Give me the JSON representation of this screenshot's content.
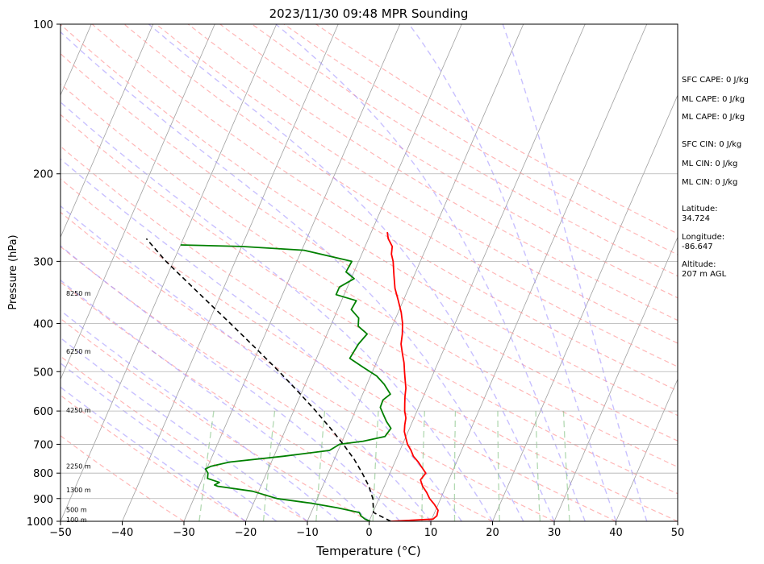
{
  "chart_data": {
    "type": "line",
    "title": "2023/11/30 09:48 MPR Sounding",
    "xlabel": "Temperature (°C)",
    "ylabel": "Pressure (hPa)",
    "xlim": [
      -50,
      50
    ],
    "ylim": [
      1000,
      100
    ],
    "y_scale": "log",
    "x_ticks": [
      "−50",
      "−40",
      "−30",
      "−20",
      "−10",
      "0",
      "10",
      "20",
      "30",
      "40",
      "50"
    ],
    "x_tick_values": [
      -50,
      -40,
      -30,
      -20,
      -10,
      0,
      10,
      20,
      30,
      40,
      50
    ],
    "y_ticks": [
      "100",
      "200",
      "300",
      "400",
      "500",
      "600",
      "700",
      "800",
      "900",
      "1000"
    ],
    "y_tick_values": [
      100,
      200,
      300,
      400,
      500,
      600,
      700,
      800,
      900,
      1000
    ],
    "grid": true,
    "series": [
      {
        "color": "#ff0000",
        "points": [
          [
            1000,
            3.5
          ],
          [
            990,
            10.2
          ],
          [
            975,
            10.6
          ],
          [
            950,
            10.4
          ],
          [
            925,
            9.4
          ],
          [
            900,
            8.2
          ],
          [
            875,
            7.3
          ],
          [
            850,
            6.2
          ],
          [
            825,
            5.4
          ],
          [
            800,
            5.8
          ],
          [
            780,
            4.8
          ],
          [
            760,
            3.8
          ],
          [
            740,
            2.6
          ],
          [
            720,
            1.8
          ],
          [
            700,
            0.8
          ],
          [
            680,
            0.1
          ],
          [
            660,
            -0.6
          ],
          [
            640,
            -1.0
          ],
          [
            620,
            -1.3
          ],
          [
            600,
            -2.0
          ],
          [
            580,
            -2.5
          ],
          [
            560,
            -3.0
          ],
          [
            540,
            -3.4
          ],
          [
            520,
            -4.1
          ],
          [
            500,
            -4.8
          ],
          [
            480,
            -5.5
          ],
          [
            460,
            -6.4
          ],
          [
            440,
            -7.3
          ],
          [
            420,
            -7.8
          ],
          [
            400,
            -8.5
          ],
          [
            380,
            -9.5
          ],
          [
            360,
            -10.8
          ],
          [
            340,
            -12.2
          ],
          [
            320,
            -13.3
          ],
          [
            300,
            -14.4
          ],
          [
            290,
            -15.2
          ],
          [
            280,
            -15.6
          ],
          [
            270,
            -16.8
          ],
          [
            262,
            -17.4
          ]
        ]
      },
      {
        "color": "#008000",
        "points": [
          [
            1000,
            0.2
          ],
          [
            990,
            -0.8
          ],
          [
            975,
            -1.7
          ],
          [
            960,
            -2.2
          ],
          [
            940,
            -6.0
          ],
          [
            920,
            -10.5
          ],
          [
            900,
            -16.5
          ],
          [
            870,
            -21.0
          ],
          [
            850,
            -27.0
          ],
          [
            845,
            -27.6
          ],
          [
            835,
            -27.0
          ],
          [
            820,
            -29.2
          ],
          [
            800,
            -29.5
          ],
          [
            785,
            -30.2
          ],
          [
            775,
            -29.5
          ],
          [
            760,
            -26.8
          ],
          [
            740,
            -18.5
          ],
          [
            720,
            -11.4
          ],
          [
            700,
            -10.2
          ],
          [
            690,
            -6.6
          ],
          [
            675,
            -3.4
          ],
          [
            650,
            -3.0
          ],
          [
            630,
            -4.2
          ],
          [
            610,
            -5.2
          ],
          [
            590,
            -6.2
          ],
          [
            570,
            -6.3
          ],
          [
            555,
            -5.5
          ],
          [
            530,
            -7.2
          ],
          [
            510,
            -9.0
          ],
          [
            490,
            -11.8
          ],
          [
            470,
            -14.6
          ],
          [
            440,
            -14.2
          ],
          [
            420,
            -13.5
          ],
          [
            405,
            -15.5
          ],
          [
            390,
            -16.0
          ],
          [
            375,
            -17.8
          ],
          [
            360,
            -17.6
          ],
          [
            350,
            -21.3
          ],
          [
            338,
            -21.3
          ],
          [
            325,
            -19.5
          ],
          [
            315,
            -21.3
          ],
          [
            300,
            -21.1
          ],
          [
            285,
            -29.6
          ],
          [
            280,
            -40
          ],
          [
            278,
            -50
          ]
        ]
      },
      {
        "color": "#000000",
        "style": "dashed",
        "points": [
          [
            1000,
            3.5
          ],
          [
            960,
            0.1
          ],
          [
            900,
            -1.0
          ],
          [
            850,
            -2.5
          ],
          [
            800,
            -4.5
          ],
          [
            750,
            -6.8
          ],
          [
            700,
            -9.6
          ],
          [
            650,
            -12.8
          ],
          [
            600,
            -16.4
          ],
          [
            550,
            -20.5
          ],
          [
            500,
            -25.1
          ],
          [
            450,
            -30.4
          ],
          [
            400,
            -36.4
          ],
          [
            350,
            -43.3
          ],
          [
            300,
            -51.2
          ],
          [
            270,
            -56.0
          ]
        ]
      }
    ],
    "height_labels": [
      {
        "label": "100 m",
        "p": 993
      },
      {
        "label": "500 m",
        "p": 948
      },
      {
        "label": "1300 m",
        "p": 865
      },
      {
        "label": "2250 m",
        "p": 775
      },
      {
        "label": "4250 m",
        "p": 598
      },
      {
        "label": "6250 m",
        "p": 455
      },
      {
        "label": "8250 m",
        "p": 348
      }
    ],
    "annotations": [
      "SFC CAPE: 0 J/kg",
      "ML CAPE: 0 J/kg",
      "ML CAPE: 0 J/kg",
      "SFC CIN: 0 J/kg",
      "ML CIN: 0 J/kg",
      "ML CIN: 0 J/kg",
      "Latitude:",
      "34.724",
      "Longitude:",
      "-86.647",
      "Altitude:",
      "207 m AGL"
    ],
    "background_lines": {
      "isotherm_color": "#a0a0a0",
      "dry_adiabat_color": "#ff9999",
      "moist_adiabat_color": "#9a8cff",
      "mixing_ratio_color": "#7fbf7f"
    }
  }
}
